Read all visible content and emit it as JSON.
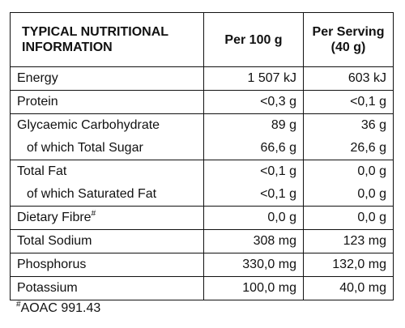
{
  "table": {
    "header": [
      "TYPICAL NUTRITIONAL INFORMATION",
      "Per 100 g",
      "Per Serving (40 g)"
    ],
    "groups": [
      [
        [
          "Energy",
          "1 507 kJ",
          "603 kJ"
        ]
      ],
      [
        [
          "Protein",
          "<0,3 g",
          "<0,1 g"
        ]
      ],
      [
        [
          "Glycaemic Carbohydrate",
          "89 g",
          "36 g"
        ],
        [
          "of which Total Sugar",
          "66,6 g",
          "26,6 g"
        ]
      ],
      [
        [
          "Total Fat",
          "<0,1 g",
          "0,0 g"
        ],
        [
          "of which Saturated Fat",
          "<0,1 g",
          "0,0 g"
        ]
      ],
      [
        [
          {
            "text": "Dietary Fibre",
            "mark": "#"
          },
          "0,0 g",
          "0,0 g"
        ]
      ],
      [
        [
          "Total Sodium",
          "308 mg",
          "123 mg"
        ]
      ],
      [
        [
          "Phosphorus",
          "330,0 mg",
          "132,0 mg"
        ]
      ],
      [
        [
          "Potassium",
          "100,0 mg",
          "40,0 mg"
        ]
      ]
    ]
  },
  "footnote": {
    "mark": "#",
    "text": "AOAC 991.43"
  }
}
